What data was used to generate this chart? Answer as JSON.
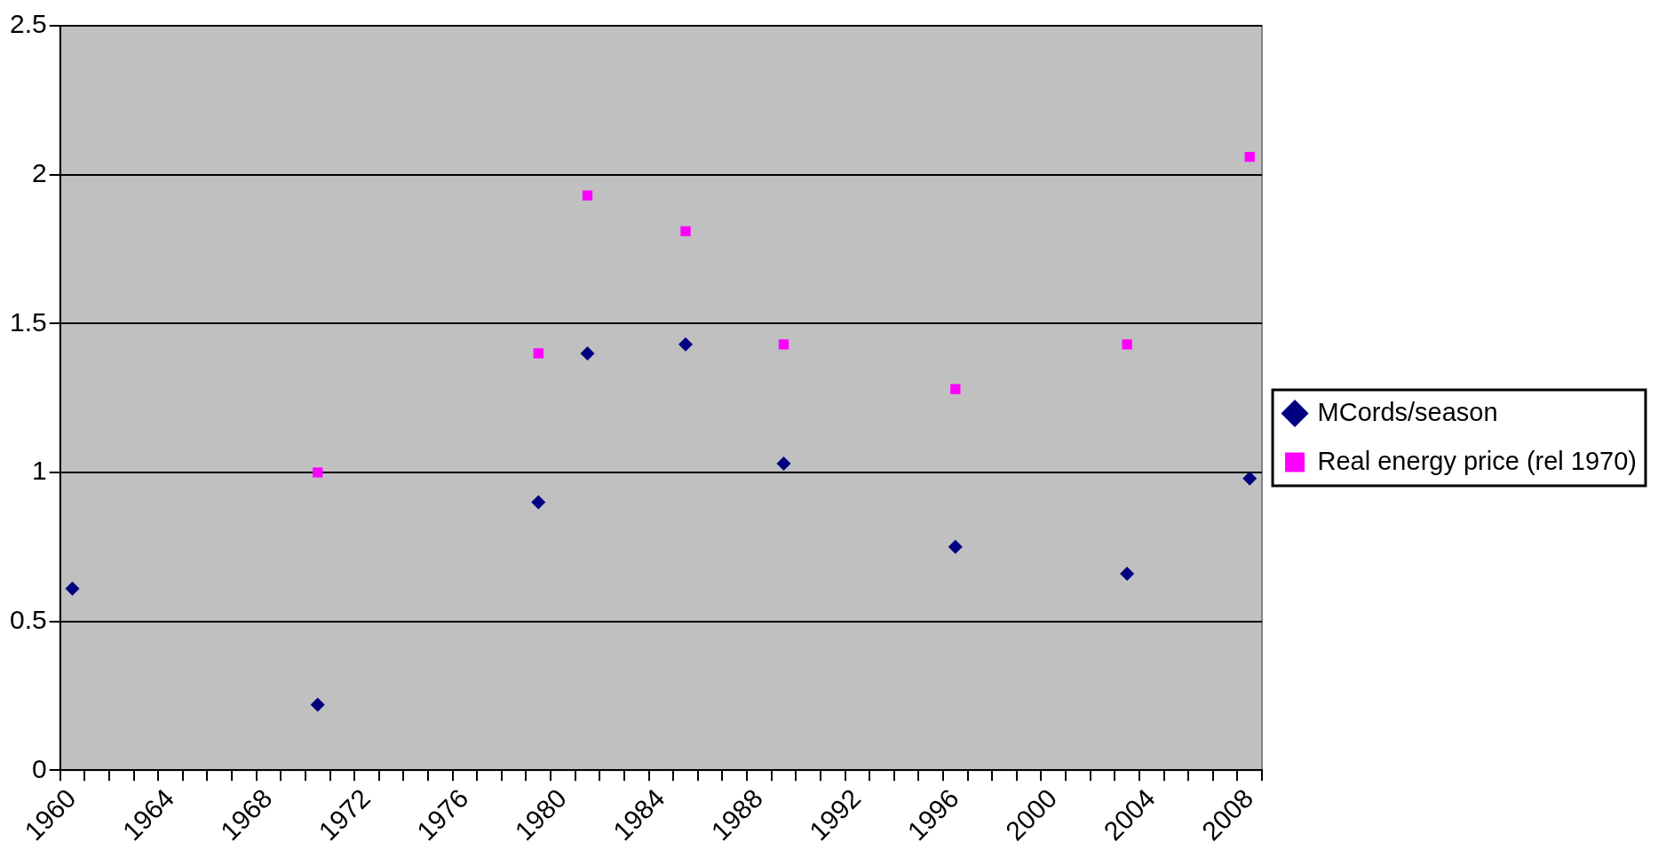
{
  "chart_data": {
    "type": "scatter",
    "categories": [
      "1960",
      null,
      null,
      null,
      "1964",
      null,
      null,
      null,
      "1968",
      null,
      null,
      null,
      "1972",
      null,
      null,
      null,
      "1976",
      null,
      null,
      null,
      "1980",
      null,
      null,
      null,
      "1984",
      null,
      null,
      null,
      "1988",
      null,
      null,
      null,
      "1992",
      null,
      null,
      null,
      "1996",
      null,
      null,
      null,
      "2000",
      null,
      null,
      null,
      "2004",
      null,
      null,
      null,
      "2008"
    ],
    "series": [
      {
        "name": "MCords/season",
        "color": "#000080",
        "marker": "diamond",
        "values": [
          0.61,
          null,
          null,
          null,
          null,
          null,
          null,
          null,
          null,
          null,
          0.22,
          null,
          null,
          null,
          null,
          null,
          null,
          null,
          null,
          0.9,
          null,
          1.4,
          null,
          null,
          null,
          1.43,
          null,
          null,
          null,
          1.03,
          null,
          null,
          null,
          null,
          null,
          null,
          0.75,
          null,
          null,
          null,
          null,
          null,
          null,
          0.66,
          null,
          null,
          null,
          null,
          0.98
        ]
      },
      {
        "name": "Real energy price (rel 1970)",
        "color": "#ff00ff",
        "marker": "square",
        "values": [
          null,
          null,
          null,
          null,
          null,
          null,
          null,
          null,
          null,
          null,
          1.0,
          null,
          null,
          null,
          null,
          null,
          null,
          null,
          null,
          1.4,
          null,
          1.93,
          null,
          null,
          null,
          1.81,
          null,
          null,
          null,
          1.43,
          null,
          null,
          null,
          null,
          null,
          null,
          1.28,
          null,
          null,
          null,
          null,
          null,
          null,
          1.43,
          null,
          null,
          null,
          null,
          2.06
        ]
      }
    ],
    "ylim": [
      0,
      2.5
    ],
    "yticks": [
      0,
      0.5,
      1,
      1.5,
      2,
      2.5
    ],
    "grid": "y",
    "legend": "right"
  }
}
